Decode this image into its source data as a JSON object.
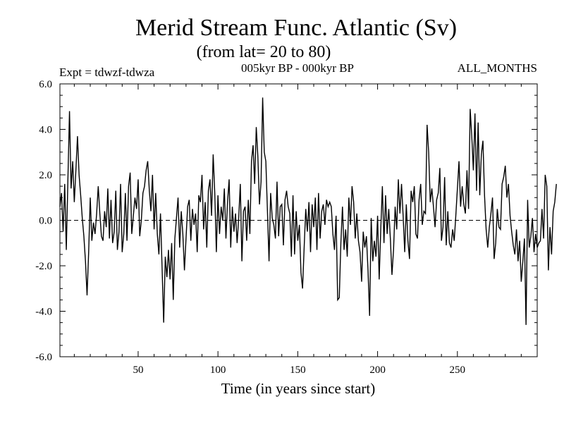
{
  "chart_data": {
    "type": "line",
    "title": "Merid Stream Func. Atlantic (Sv)",
    "subtitle": "(from lat= 20 to 80)",
    "header_left": "Expt = tdwzf-tdwza",
    "header_center": "005kyr BP - 000kyr BP",
    "header_right": "ALL_MONTHS",
    "xlabel": "Time (in years since start)",
    "ylabel": "",
    "xlim": [
      1,
      300
    ],
    "ylim": [
      -6,
      6
    ],
    "xticks": [
      50,
      100,
      150,
      200,
      250
    ],
    "yticks": [
      -6,
      -4,
      -2,
      0,
      2,
      4,
      6
    ],
    "ytick_labels": [
      "-6.0",
      "-4.0",
      "-2.0",
      "0.0",
      "2.0",
      "4.0",
      "6.0"
    ],
    "zero_line": "dashed",
    "grid": false,
    "x_start": 1,
    "x_step": 1,
    "values": [
      0.6,
      1.2,
      -0.5,
      1.6,
      -1.3,
      1.8,
      4.8,
      1.4,
      2.6,
      0.8,
      2.2,
      3.7,
      2.0,
      1.1,
      0.1,
      -0.7,
      -1.8,
      -3.3,
      -1.4,
      1.0,
      -0.9,
      -0.1,
      -0.6,
      0.3,
      1.5,
      0.3,
      -0.7,
      -0.9,
      0.4,
      -0.3,
      1.4,
      -0.8,
      0.9,
      -1.0,
      -0.5,
      1.3,
      -1.3,
      -0.5,
      1.6,
      -1.4,
      -0.6,
      1.2,
      -0.9,
      1.5,
      2.1,
      -0.6,
      0.2,
      1.0,
      0.5,
      1.8,
      -0.7,
      0.0,
      1.2,
      1.5,
      2.2,
      2.6,
      1.3,
      0.4,
      2.0,
      -0.4,
      1.2,
      -0.6,
      -1.5,
      0.3,
      -2.1,
      -4.5,
      -1.6,
      -2.5,
      -1.3,
      -2.6,
      -1.0,
      -3.5,
      -0.8,
      0.1,
      1.0,
      -1.2,
      0.4,
      -0.6,
      -2.2,
      -0.8,
      0.6,
      0.9,
      -0.9,
      0.5,
      -0.2,
      0.3,
      -1.4,
      1.1,
      0.8,
      2.0,
      -0.4,
      0.8,
      -1.2,
      1.3,
      1.8,
      0.2,
      2.9,
      1.2,
      -1.4,
      1.1,
      -0.6,
      0.6,
      0.0,
      1.4,
      -0.8,
      0.8,
      1.8,
      -1.2,
      0.6,
      -0.5,
      0.3,
      -1.0,
      0.1,
      1.6,
      -1.8,
      0.4,
      0.6,
      -0.9,
      0.9,
      -0.6,
      2.6,
      3.3,
      1.6,
      4.1,
      2.8,
      0.7,
      1.7,
      5.4,
      3.0,
      2.6,
      0.4,
      -1.8,
      1.2,
      0.1,
      -0.2,
      -0.8,
      1.7,
      -0.7,
      0.6,
      0.7,
      -1.1,
      0.9,
      1.3,
      0.6,
      0.3,
      -1.6,
      1.1,
      -1.5,
      0.4,
      -0.9,
      -0.2,
      -2.3,
      -3.0,
      -1.2,
      0.5,
      -0.5,
      0.8,
      -1.4,
      0.7,
      -0.3,
      1.0,
      -1.3,
      1.2,
      -0.8,
      0.4,
      0.7,
      -0.2,
      0.9,
      0.6,
      0.8,
      0.6,
      -0.6,
      -1.3,
      0.2,
      -3.5,
      -3.4,
      -1.0,
      0.6,
      -1.3,
      -0.4,
      -1.6,
      1.0,
      -0.2,
      1.5,
      0.8,
      -0.8,
      0.3,
      -0.9,
      -1.4,
      -2.7,
      -0.5,
      -1.2,
      -0.7,
      -2.2,
      -4.2,
      0.1,
      -1.8,
      -0.9,
      -1.6,
      0.2,
      -2.6,
      -0.4,
      1.5,
      -1.0,
      1.1,
      -0.6,
      0.5,
      -0.8,
      -2.4,
      -1.3,
      0.6,
      -0.4,
      1.8,
      0.3,
      1.6,
      0.2,
      -1.4,
      0.7,
      -0.9,
      -1.7,
      1.3,
      0.8,
      1.5,
      -0.6,
      -0.8,
      0.9,
      1.6,
      -0.2,
      0.4,
      0.3,
      4.2,
      3.0,
      0.8,
      1.4,
      0.6,
      -0.3,
      0.9,
      1.2,
      2.3,
      -0.9,
      -0.3,
      1.9,
      -1.1,
      0.4,
      -1.0,
      -1.2,
      -0.4,
      -0.9,
      0.2,
      1.4,
      2.6,
      0.6,
      1.5,
      0.7,
      0.3,
      2.2,
      0.5,
      4.9,
      3.7,
      2.2,
      4.7,
      1.3,
      4.3,
      1.1,
      2.9,
      3.5,
      1.1,
      -0.4,
      -1.2,
      -0.3,
      0.3,
      1.0,
      -1.7,
      -1.0,
      0.5,
      -0.3,
      -0.4,
      1.6,
      1.9,
      2.4,
      1.0,
      1.6,
      0.2,
      -0.5,
      -1.1,
      -1.5,
      -0.4,
      -1.8,
      -0.9,
      -2.7,
      -1.8,
      -0.8,
      -4.6,
      0.9,
      -1.2,
      -0.7,
      0.1,
      -1.4,
      -0.6,
      -1.2,
      -1.0,
      -0.9,
      0.5,
      -0.8,
      2.0,
      1.5,
      -2.2,
      -0.3,
      -1.5,
      0.4,
      0.8,
      1.6
    ]
  }
}
